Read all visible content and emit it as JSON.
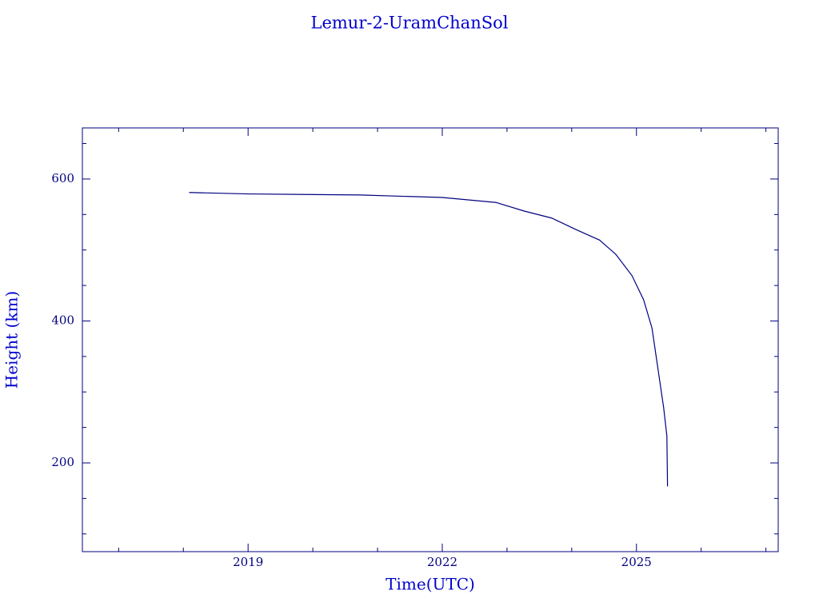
{
  "chart_data": {
    "type": "line",
    "title": "Lemur-2-UramChanSol",
    "x_label": "Time(UTC)",
    "y_label": "Height (km)",
    "x": [
      2018.09,
      2019.0,
      2020.73,
      2022.0,
      2022.83,
      2023.26,
      2023.69,
      2024.06,
      2024.43,
      2024.68,
      2024.93,
      2025.11,
      2025.24,
      2025.33,
      2025.42,
      2025.47,
      2025.48
    ],
    "series": [
      {
        "color": "#000080",
        "values": [
          581,
          579,
          577.5,
          574,
          567,
          555,
          545,
          529,
          514,
          494,
          464,
          430,
          390,
          334,
          278,
          238,
          167
        ]
      }
    ],
    "xlim": [
      2016.44,
      2027.19
    ],
    "xticks": [
      2019,
      2022,
      2025
    ],
    "x_minor_ticks": [
      2017,
      2018,
      2020,
      2021,
      2023,
      2024,
      2026,
      2027
    ],
    "ylim": [
      75,
      672
    ],
    "yticks": [
      200,
      400,
      600
    ],
    "y_minor_ticks": [
      100,
      150,
      250,
      300,
      350,
      450,
      500,
      550,
      650
    ]
  }
}
